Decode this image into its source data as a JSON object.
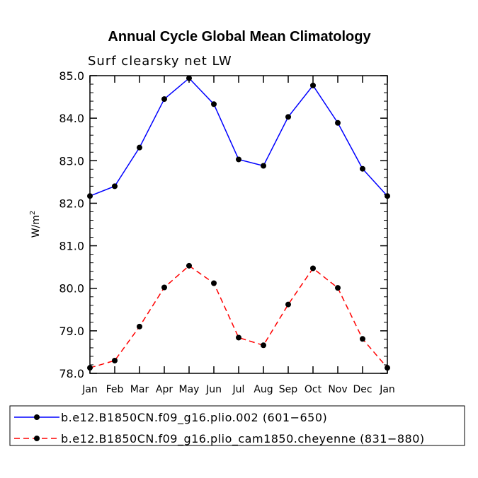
{
  "chart_data": {
    "type": "line",
    "title": "Annual Cycle Global Mean Climatology",
    "subtitle": "Surf clearsky net LW",
    "ylabel": "W/m",
    "ylabel_sup": "2",
    "xlabel": "",
    "ylim": [
      78.0,
      85.0
    ],
    "yticks": [
      "78.0",
      "79.0",
      "80.0",
      "81.0",
      "82.0",
      "83.0",
      "84.0",
      "85.0"
    ],
    "categories": [
      "Jan",
      "Feb",
      "Mar",
      "Apr",
      "May",
      "Jun",
      "Jul",
      "Aug",
      "Sep",
      "Oct",
      "Nov",
      "Dec",
      "Jan"
    ],
    "series": [
      {
        "name": "b.e12.B1850CN.f09_g16.plio.002 (601−650)",
        "color": "#0000ff",
        "dash": "solid",
        "values": [
          82.17,
          82.4,
          83.31,
          84.45,
          84.94,
          84.33,
          83.03,
          82.88,
          84.03,
          84.77,
          83.89,
          82.81,
          82.17
        ]
      },
      {
        "name": "b.e12.B1850CN.f09_g16.plio_cam1850.cheyenne (831−880)",
        "color": "#ff0000",
        "dash": "dashed",
        "values": [
          78.13,
          78.3,
          79.1,
          80.02,
          80.53,
          80.12,
          78.84,
          78.66,
          79.62,
          80.47,
          80.01,
          78.81,
          78.13
        ]
      }
    ]
  }
}
